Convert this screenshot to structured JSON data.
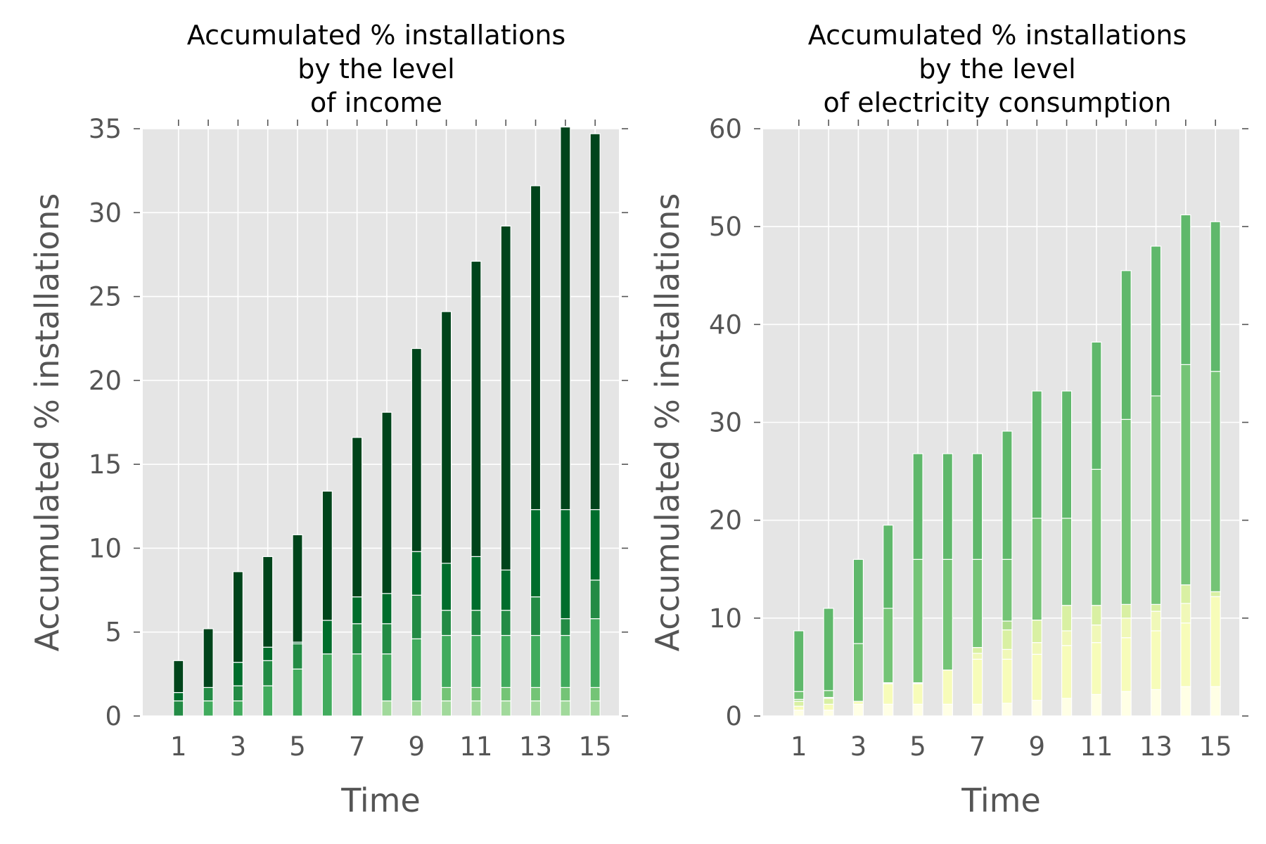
{
  "chart_data": [
    {
      "type": "bar",
      "stacked": true,
      "title": [
        "Accumulated % installations",
        "by the level",
        "of income"
      ],
      "xlabel": "Time",
      "ylabel": "Accumulated % installations",
      "xlim": [
        -0.2,
        15.8
      ],
      "ylim": [
        0,
        35
      ],
      "xticks": [
        1,
        3,
        5,
        7,
        9,
        11,
        13,
        15
      ],
      "yticks": [
        0,
        5,
        10,
        15,
        20,
        25,
        30,
        35
      ],
      "grid": true,
      "x": [
        1,
        2,
        3,
        4,
        5,
        6,
        7,
        8,
        9,
        10,
        11,
        12,
        13,
        14,
        15
      ],
      "series": [
        {
          "color": "#a1d99b",
          "values": [
            0,
            0,
            0,
            0,
            0,
            0,
            0,
            0.9,
            0.9,
            0.9,
            0.9,
            0.9,
            0.9,
            0.9,
            0.9
          ]
        },
        {
          "color": "#74c476",
          "values": [
            0,
            0,
            0,
            0,
            0,
            0,
            0,
            0,
            0,
            0.8,
            0.8,
            0.8,
            0.8,
            0.8,
            0.8
          ]
        },
        {
          "color": "#41ab5d",
          "values": [
            0,
            0.9,
            0.9,
            1.8,
            2.8,
            3.7,
            3.7,
            2.8,
            3.7,
            3.1,
            3.1,
            3.1,
            3.1,
            3.1,
            4.1
          ]
        },
        {
          "color": "#238b45",
          "values": [
            0.9,
            0.8,
            0.9,
            1.5,
            1.5,
            0,
            1.8,
            1.8,
            2.6,
            1.5,
            1.5,
            1.5,
            2.3,
            1.0,
            2.3
          ]
        },
        {
          "color": "#006d2c",
          "values": [
            0.5,
            0,
            1.4,
            0.8,
            0.1,
            2.0,
            1.6,
            1.8,
            2.6,
            2.8,
            3.2,
            2.4,
            5.2,
            6.5,
            4.2
          ]
        },
        {
          "color": "#00441b",
          "values": [
            1.9,
            3.5,
            5.4,
            5.4,
            6.4,
            7.7,
            9.5,
            10.8,
            12.1,
            15.0,
            17.6,
            20.5,
            19.3,
            22.8,
            22.4
          ]
        }
      ]
    },
    {
      "type": "bar",
      "stacked": true,
      "title": [
        "Accumulated % installations",
        "by the level",
        "of electricity consumption"
      ],
      "xlabel": "Time",
      "ylabel": "Accumulated % installations",
      "xlim": [
        -0.2,
        15.8
      ],
      "ylim": [
        0,
        60
      ],
      "xticks": [
        1,
        3,
        5,
        7,
        9,
        11,
        13,
        15
      ],
      "yticks": [
        0,
        10,
        20,
        30,
        40,
        50,
        60
      ],
      "grid": true,
      "x": [
        1,
        2,
        3,
        4,
        5,
        6,
        7,
        8,
        9,
        10,
        11,
        12,
        13,
        14,
        15
      ],
      "series": [
        {
          "color": "#ffffe5",
          "values": [
            0.6,
            0.6,
            1.2,
            1.2,
            1.2,
            1.2,
            1.2,
            1.3,
            1.6,
            1.8,
            2.2,
            2.5,
            2.7,
            3.0,
            3.0
          ]
        },
        {
          "color": "#f7fcb9",
          "values": [
            0.4,
            0.6,
            0.3,
            2.1,
            2.1,
            3.5,
            4.6,
            4.5,
            4.7,
            5.4,
            5.3,
            5.5,
            6.0,
            6.5,
            9.2
          ]
        },
        {
          "color": "#f0f8b8",
          "values": [
            0,
            0,
            0,
            0,
            0,
            0,
            0.6,
            1.0,
            1.2,
            1.5,
            1.8,
            2.0,
            2.0,
            2.0,
            0
          ]
        },
        {
          "color": "#d9f0a3",
          "values": [
            0.5,
            0.6,
            0,
            0.1,
            0.1,
            0,
            0.6,
            2.0,
            2.3,
            2.6,
            2.0,
            1.4,
            0.7,
            1.9,
            0.5
          ]
        },
        {
          "color": "#addd8e",
          "values": [
            0.2,
            0.1,
            0,
            0,
            0,
            0,
            0,
            0.9,
            0,
            0,
            0,
            0,
            0,
            0,
            0
          ]
        },
        {
          "color": "#74c476",
          "values": [
            0.8,
            0.7,
            5.9,
            7.6,
            12.6,
            11.3,
            9.0,
            6.3,
            10.4,
            8.9,
            13.9,
            18.9,
            21.3,
            22.5,
            22.5
          ]
        },
        {
          "color": "#5fb86b",
          "values": [
            6.2,
            8.4,
            8.6,
            8.5,
            10.8,
            10.8,
            10.8,
            13.1,
            13.0,
            13.0,
            13.0,
            15.2,
            15.3,
            15.3,
            15.3
          ]
        }
      ]
    }
  ]
}
